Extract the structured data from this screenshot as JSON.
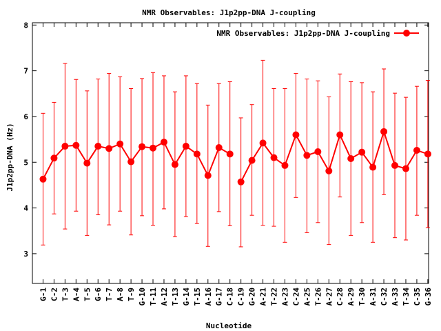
{
  "chart_data": {
    "type": "line",
    "title": "NMR Observables: J1p2pp-DNA J-coupling",
    "xlabel": "Nucleotide",
    "ylabel": "J1p2pp-DNA (Hz)",
    "ylim": [
      2.35,
      8.05
    ],
    "yticks": [
      3,
      4,
      5,
      6,
      7,
      8
    ],
    "grid": false,
    "legend_position": "top-right",
    "series_color": "#ff0000",
    "categories": [
      "G-1",
      "C-2",
      "T-3",
      "A-4",
      "T-5",
      "G-6",
      "T-7",
      "A-8",
      "T-9",
      "G-10",
      "T-11",
      "A-12",
      "T-13",
      "G-14",
      "T-15",
      "A-16",
      "G-17",
      "C-18",
      "C-19",
      "G-20",
      "A-21",
      "T-22",
      "A-23",
      "C-24",
      "A-25",
      "T-26",
      "A-27",
      "C-28",
      "A-29",
      "T-30",
      "A-31",
      "C-32",
      "A-33",
      "T-34",
      "C-35",
      "G-36"
    ],
    "series": [
      {
        "name": "NMR Observables: J1p2pp-DNA J-coupling",
        "segments": [
          {
            "x": [
              1,
              2,
              3,
              4,
              5,
              6,
              7,
              8,
              9,
              10,
              11,
              12,
              13,
              14,
              15,
              16,
              17,
              18
            ],
            "y": [
              4.63,
              5.09,
              5.35,
              5.37,
              4.98,
              5.35,
              5.3,
              5.4,
              5.01,
              5.34,
              5.31,
              5.44,
              4.95,
              5.35,
              5.18,
              4.71,
              5.32,
              5.18
            ],
            "err_low": [
              3.19,
              3.87,
              3.54,
              3.93,
              3.4,
              3.85,
              3.63,
              3.93,
              3.41,
              3.83,
              3.62,
              3.98,
              3.37,
              3.81,
              3.66,
              3.16,
              3.92,
              3.61
            ],
            "err_high": [
              6.07,
              6.31,
              7.16,
              6.81,
              6.56,
              6.82,
              6.94,
              6.87,
              6.61,
              6.83,
              6.96,
              6.89,
              6.54,
              6.89,
              6.72,
              6.25,
              6.72,
              6.76
            ]
          },
          {
            "x": [
              19,
              20,
              21,
              22,
              23,
              24,
              25,
              26,
              27,
              28,
              29,
              30,
              31,
              32,
              33,
              34,
              35,
              36
            ],
            "y": [
              4.57,
              5.04,
              5.42,
              5.1,
              4.93,
              5.6,
              5.15,
              5.23,
              4.81,
              5.6,
              5.08,
              5.22,
              4.89,
              5.67,
              4.93,
              4.86,
              5.26,
              5.18
            ],
            "err_low": [
              3.15,
              3.84,
              3.62,
              3.6,
              3.25,
              4.23,
              3.46,
              3.68,
              3.2,
              4.24,
              3.4,
              3.68,
              3.25,
              4.29,
              3.35,
              3.3,
              3.84,
              3.57
            ],
            "err_high": [
              5.97,
              6.26,
              7.23,
              6.61,
              6.61,
              6.94,
              6.82,
              6.78,
              6.43,
              6.93,
              6.76,
              6.74,
              6.54,
              7.04,
              6.51,
              6.42,
              6.66,
              6.79
            ]
          }
        ]
      }
    ]
  }
}
